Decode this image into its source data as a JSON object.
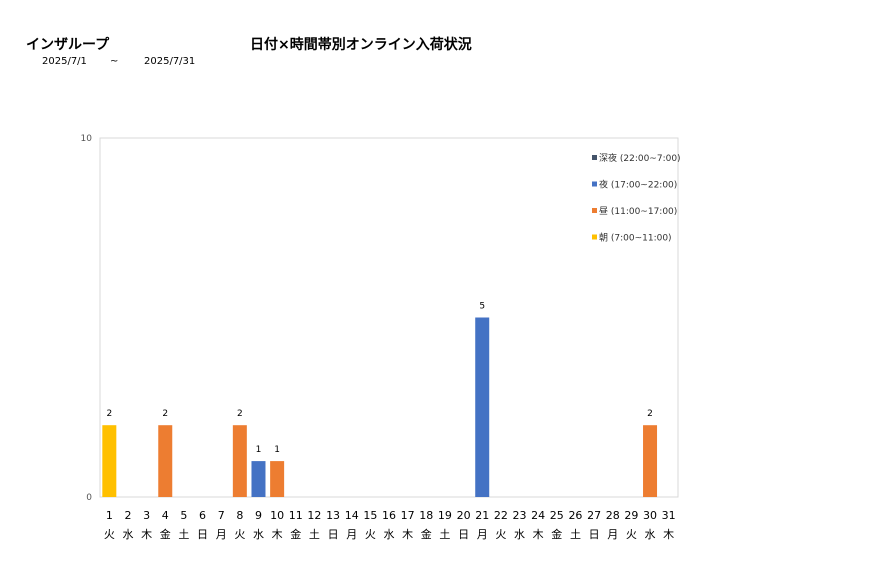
{
  "header": {
    "company": "インザループ",
    "title": "日付×時間帯別オンライン入荷状況",
    "period_start": "2025/7/1",
    "period_sep": "~",
    "period_end": "2025/7/31"
  },
  "chart_data": {
    "type": "bar",
    "ylim": [
      0,
      10
    ],
    "yticks": [
      0,
      10
    ],
    "grid": false,
    "legend_position": "top-right",
    "categories": [
      "1",
      "2",
      "3",
      "4",
      "5",
      "6",
      "7",
      "8",
      "9",
      "10",
      "11",
      "12",
      "13",
      "14",
      "15",
      "16",
      "17",
      "18",
      "19",
      "20",
      "21",
      "22",
      "23",
      "24",
      "25",
      "26",
      "27",
      "28",
      "29",
      "30",
      "31"
    ],
    "weekdays": [
      "火",
      "水",
      "木",
      "金",
      "土",
      "日",
      "月",
      "火",
      "水",
      "木",
      "金",
      "土",
      "日",
      "月",
      "火",
      "水",
      "木",
      "金",
      "土",
      "日",
      "月",
      "火",
      "水",
      "木",
      "金",
      "土",
      "日",
      "月",
      "火",
      "水",
      "木"
    ],
    "series": [
      {
        "name": "深夜 (22:00~7:00)",
        "color": "#44546a",
        "values": [
          0,
          0,
          0,
          0,
          0,
          0,
          0,
          0,
          0,
          0,
          0,
          0,
          0,
          0,
          0,
          0,
          0,
          0,
          0,
          0,
          0,
          0,
          0,
          0,
          0,
          0,
          0,
          0,
          0,
          0,
          0
        ]
      },
      {
        "name": "夜 (17:00~22:00)",
        "color": "#4472c4",
        "values": [
          0,
          0,
          0,
          0,
          0,
          0,
          0,
          0,
          1,
          0,
          0,
          0,
          0,
          0,
          0,
          0,
          0,
          0,
          0,
          0,
          5,
          0,
          0,
          0,
          0,
          0,
          0,
          0,
          0,
          0,
          0
        ]
      },
      {
        "name": "昼 (11:00~17:00)",
        "color": "#ed7d31",
        "values": [
          0,
          0,
          0,
          2,
          0,
          0,
          0,
          2,
          0,
          1,
          0,
          0,
          0,
          0,
          0,
          0,
          0,
          0,
          0,
          0,
          0,
          0,
          0,
          0,
          0,
          0,
          0,
          0,
          0,
          2,
          0
        ]
      },
      {
        "name": "朝 (7:00~11:00)",
        "color": "#ffc000",
        "values": [
          2,
          0,
          0,
          0,
          0,
          0,
          0,
          0,
          0,
          0,
          0,
          0,
          0,
          0,
          0,
          0,
          0,
          0,
          0,
          0,
          0,
          0,
          0,
          0,
          0,
          0,
          0,
          0,
          0,
          0,
          0
        ]
      }
    ]
  }
}
